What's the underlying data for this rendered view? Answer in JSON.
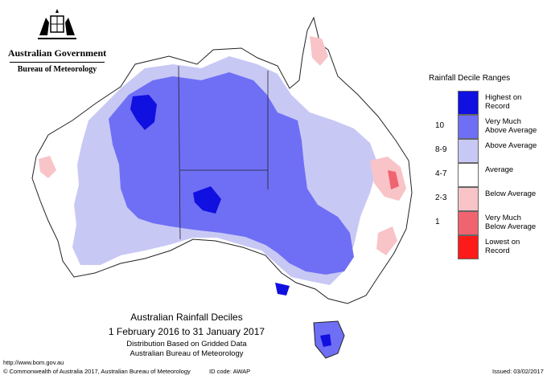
{
  "branding": {
    "government": "Australian Government",
    "agency": "Bureau of Meteorology"
  },
  "legend": {
    "title": "Rainfall Decile Ranges",
    "items": [
      {
        "code": "",
        "label": "Highest on Record",
        "color": "#1010e0"
      },
      {
        "code": "10",
        "label": "Very Much Above Average",
        "color": "#6f6ff5"
      },
      {
        "code": "8-9",
        "label": "Above Average",
        "color": "#c8c8f5"
      },
      {
        "code": "4-7",
        "label": "Average",
        "color": "#ffffff"
      },
      {
        "code": "2-3",
        "label": "Below Average",
        "color": "#f8c4c8"
      },
      {
        "code": "1",
        "label": "Very Much Below Average",
        "color": "#f06470"
      },
      {
        "code": "",
        "label": "Lowest on Record",
        "color": "#ff1a1a"
      }
    ]
  },
  "map_title": {
    "line1": "Australian Rainfall Deciles",
    "line2": "1 February 2016 to 31 January 2017",
    "line3": "Distribution Based on Gridded Data",
    "line4": "Australian Bureau of Meteorology"
  },
  "footer": {
    "url": "http://www.bom.gov.au",
    "copyright": "© Commonwealth of Australia 2017, Australian Bureau of Meteorology",
    "id_code": "ID code: AWAP",
    "issued": "Issued: 03/02/2017"
  }
}
